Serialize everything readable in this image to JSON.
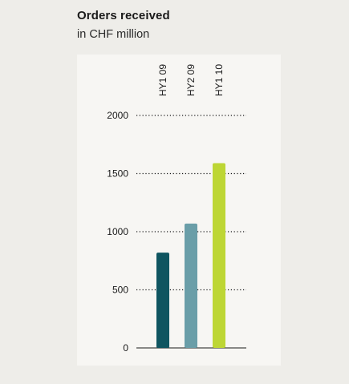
{
  "header": {
    "title": "Orders received",
    "subtitle": "in CHF million"
  },
  "chart_data": {
    "type": "bar",
    "title": "Orders received",
    "subtitle": "in CHF million",
    "categories": [
      "HY1 09",
      "HY2 09",
      "HY1 10"
    ],
    "values": [
      820,
      1070,
      1590
    ],
    "colors": [
      "#0f5560",
      "#6a9ea8",
      "#bdd634"
    ],
    "yticks": [
      0,
      500,
      1000,
      1500,
      2000
    ],
    "ylim": [
      0,
      2000
    ],
    "grid": "dotted horizontal",
    "xlabel": "",
    "ylabel": ""
  }
}
